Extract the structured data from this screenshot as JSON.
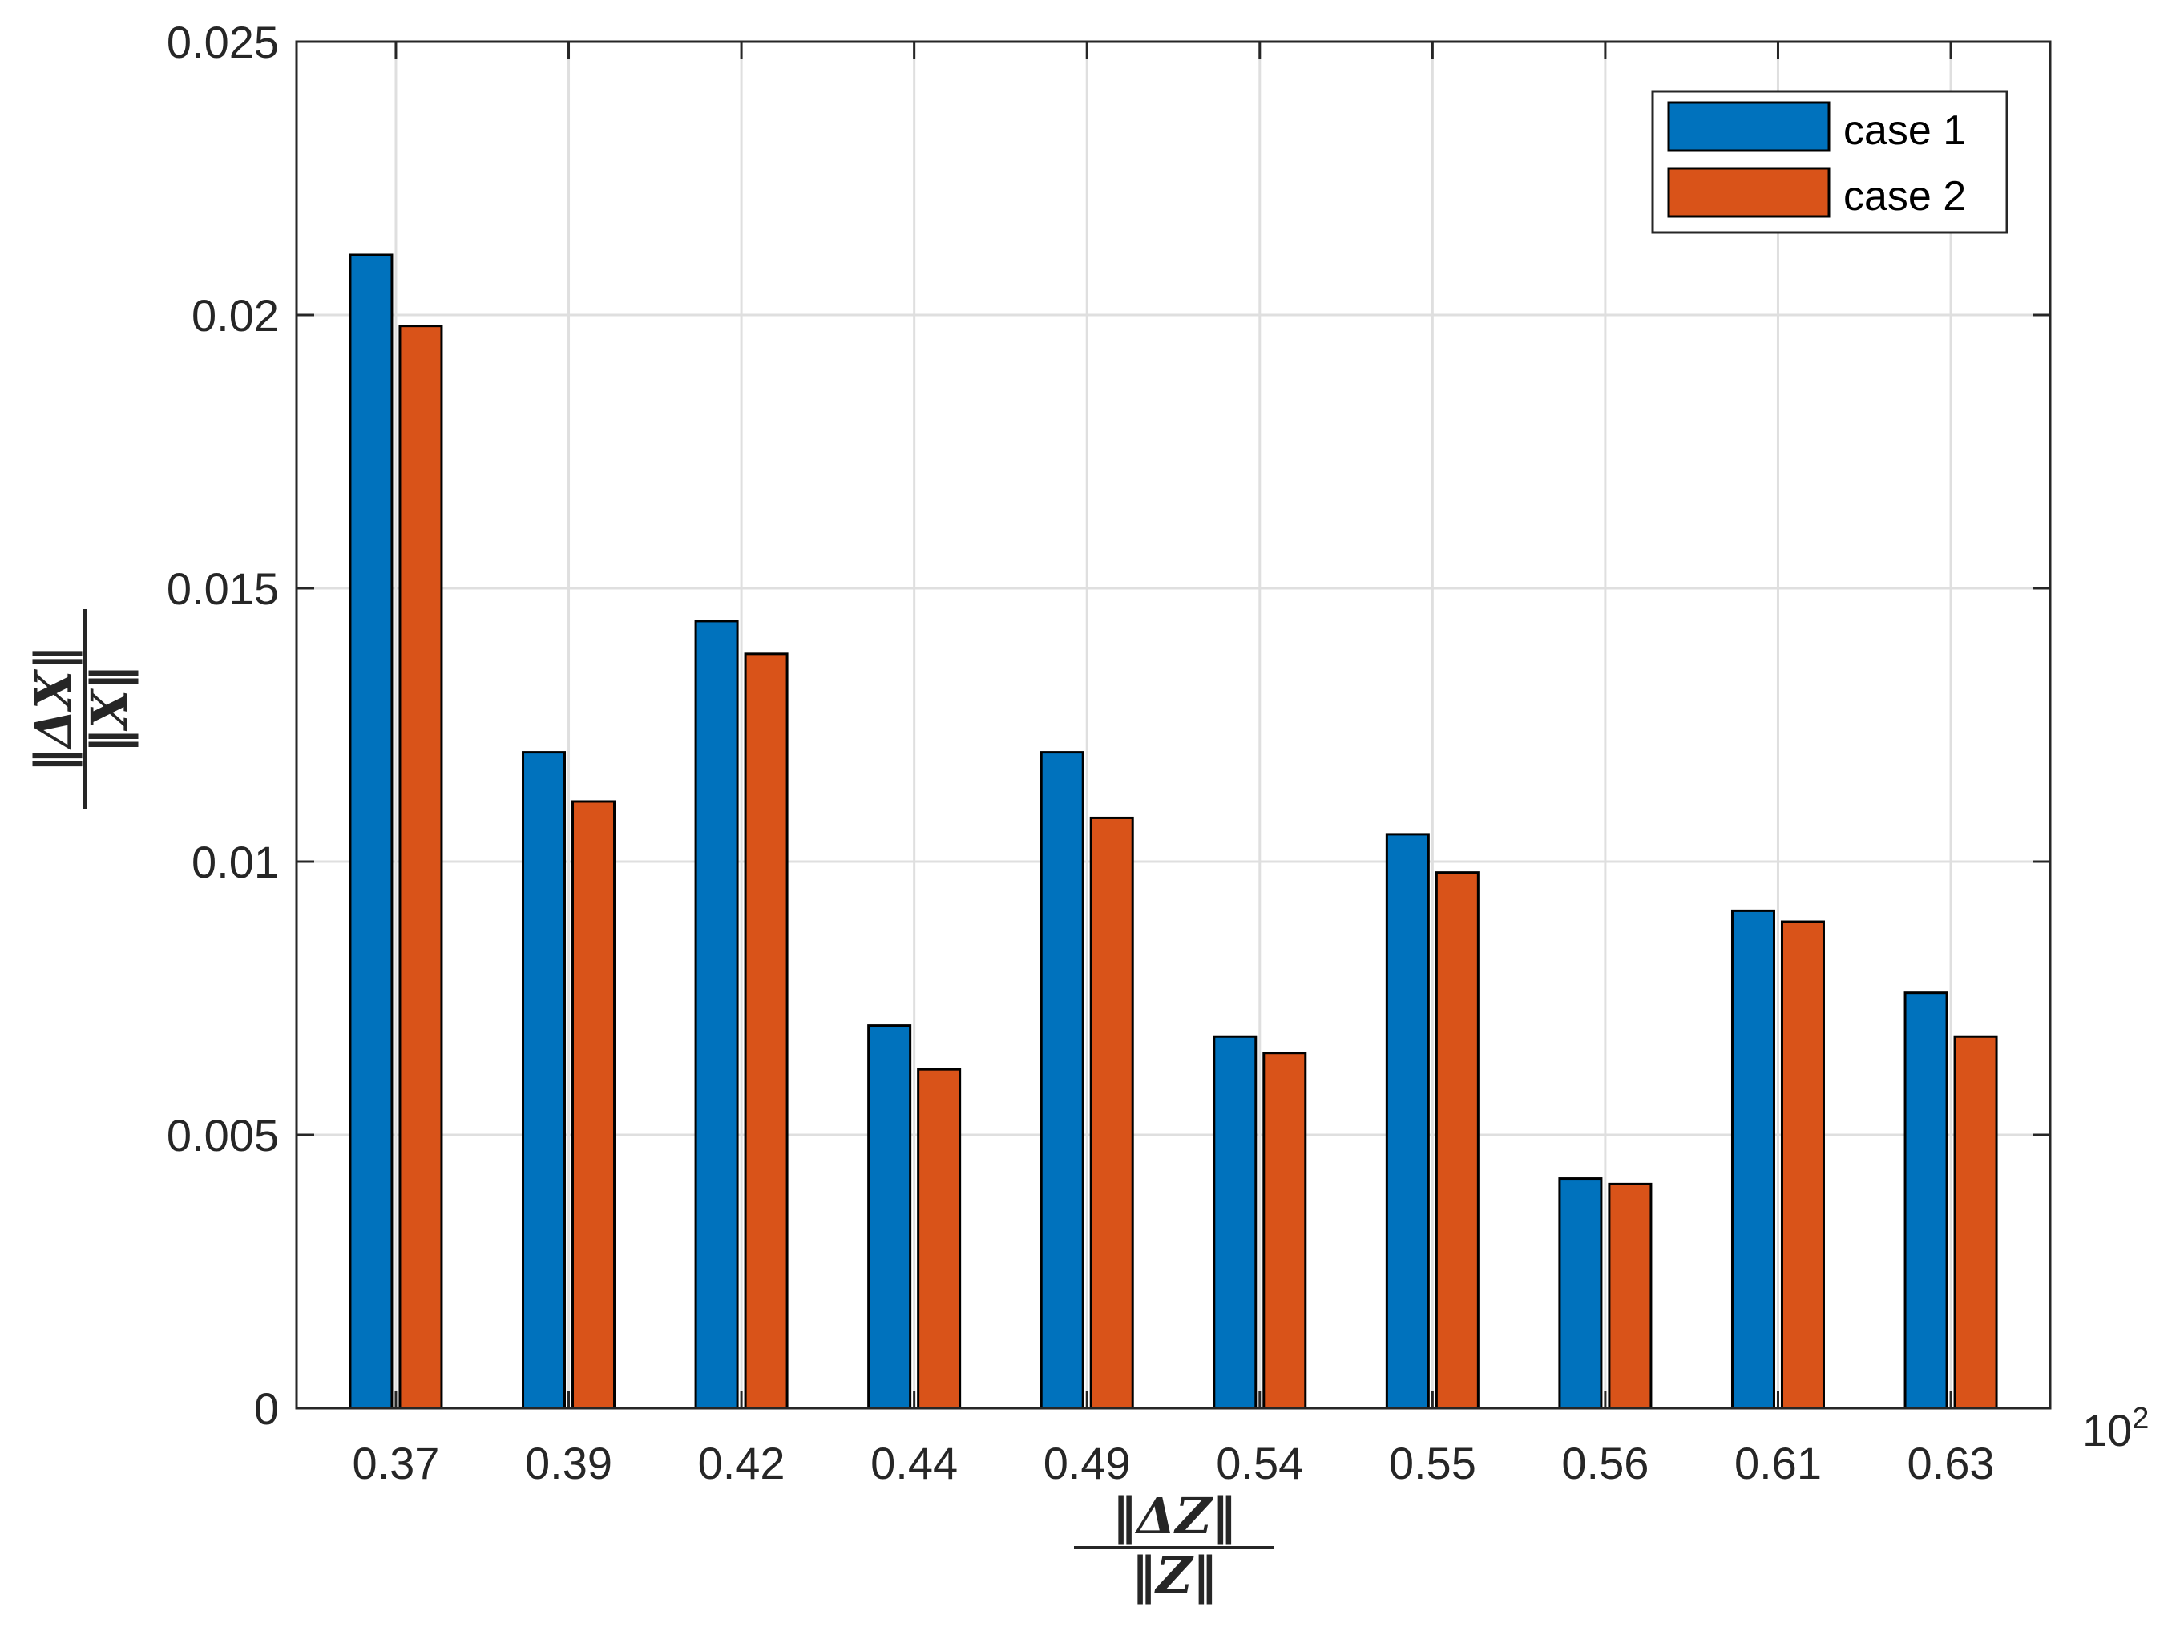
{
  "chart_data": {
    "type": "bar",
    "categories": [
      "0.37",
      "0.39",
      "0.42",
      "0.44",
      "0.49",
      "0.54",
      "0.55",
      "0.56",
      "0.61",
      "0.63"
    ],
    "x_exponent_label": "10",
    "x_exponent_power": "2",
    "series": [
      {
        "name": "case 1",
        "color": "#0072bd",
        "values": [
          0.0211,
          0.012,
          0.0144,
          0.007,
          0.012,
          0.0068,
          0.0105,
          0.0042,
          0.0091,
          0.0076
        ]
      },
      {
        "name": "case 2",
        "color": "#d95319",
        "values": [
          0.0198,
          0.0111,
          0.0138,
          0.0062,
          0.0108,
          0.0065,
          0.0098,
          0.0041,
          0.0089,
          0.0068
        ]
      }
    ],
    "ylim": [
      0,
      0.025
    ],
    "yticks": [
      "0",
      "0.005",
      "0.01",
      "0.015",
      "0.02",
      "0.025"
    ],
    "ytick_values": [
      0,
      0.005,
      0.01,
      0.015,
      0.02,
      0.025
    ],
    "xlabel": {
      "numerator": "‖ΔZ‖",
      "denominator": "‖Z‖"
    },
    "ylabel": {
      "numerator": "‖ΔX‖",
      "denominator": "‖X‖"
    },
    "grid": true,
    "legend_position": "top-right"
  }
}
